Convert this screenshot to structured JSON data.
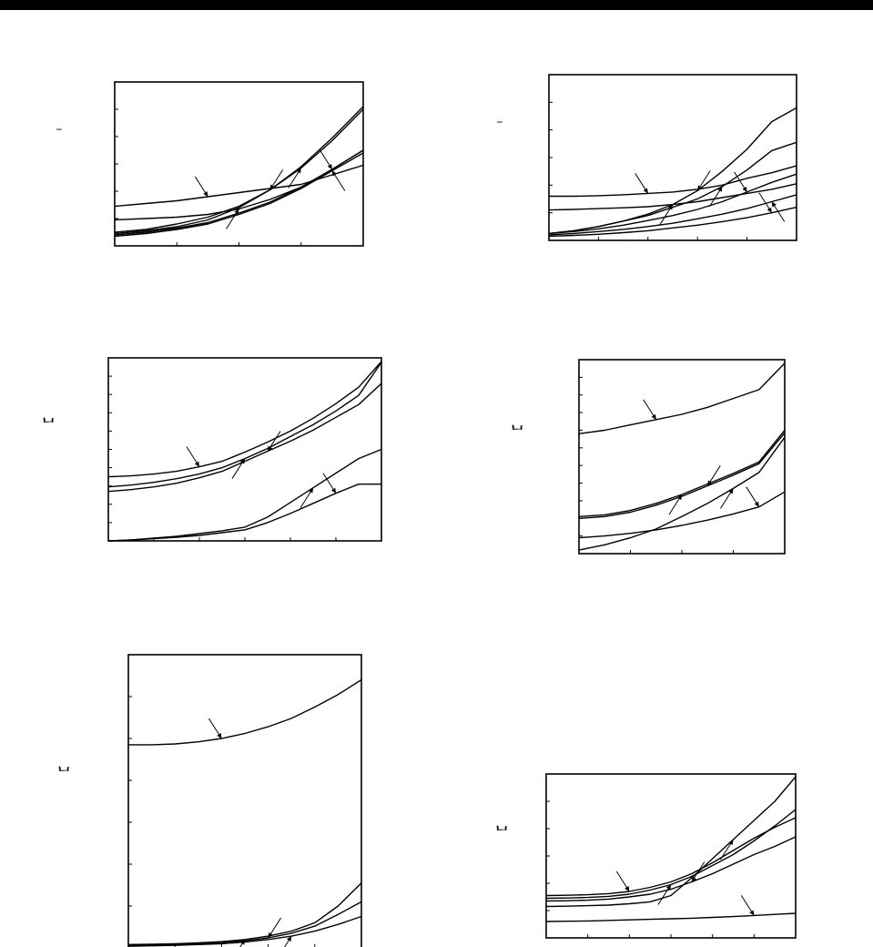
{
  "page": {
    "header_bar_color": "#000000",
    "line_color": "#000000",
    "background": "#ffffff"
  },
  "panels": [
    {
      "id": "top-left",
      "ylabel_glyph": "ı"
    },
    {
      "id": "top-right",
      "ylabel_glyph": "ı"
    },
    {
      "id": "mid-left",
      "ylabel_glyph": "ℷ"
    },
    {
      "id": "mid-right",
      "ylabel_glyph": "ℷ"
    },
    {
      "id": "bottom-left",
      "ylabel_glyph": "ℷ"
    },
    {
      "id": "bottom-right",
      "ylabel_glyph": "ℷ"
    }
  ],
  "chart_data": [
    {
      "type": "line",
      "title": "",
      "xlabel": "",
      "ylabel": "",
      "xlim": [
        0,
        4
      ],
      "ylim": [
        0,
        6
      ],
      "grid": false,
      "x_ticks": 4,
      "y_ticks": 6,
      "series": [
        {
          "x": [
            0,
            0.5,
            1,
            1.5,
            2,
            2.5,
            3,
            3.5,
            4
          ],
          "y": [
            1.45,
            1.55,
            1.65,
            1.8,
            1.95,
            2.1,
            2.25,
            2.6,
            2.95
          ]
        },
        {
          "x": [
            0,
            0.5,
            1,
            1.5,
            2,
            2.5,
            3,
            3.5,
            4
          ],
          "y": [
            0.95,
            1.0,
            1.05,
            1.15,
            1.35,
            1.7,
            2.15,
            2.8,
            3.5
          ]
        },
        {
          "x": [
            0,
            0.5,
            1,
            1.5,
            2,
            2.5,
            3,
            3.5,
            4
          ],
          "y": [
            0.45,
            0.55,
            0.7,
            0.95,
            1.4,
            2.05,
            2.9,
            3.95,
            5.1
          ]
        },
        {
          "x": [
            0,
            0.5,
            1,
            1.5,
            2,
            2.5,
            3,
            3.5,
            4
          ],
          "y": [
            0.5,
            0.6,
            0.8,
            1.05,
            1.45,
            2.05,
            2.85,
            3.85,
            5.0
          ]
        },
        {
          "x": [
            0,
            0.5,
            1,
            1.5,
            2,
            2.5,
            3,
            3.5,
            4
          ],
          "y": [
            0.4,
            0.5,
            0.65,
            0.85,
            1.2,
            1.6,
            2.15,
            2.8,
            3.5
          ]
        },
        {
          "x": [
            0,
            0.5,
            1,
            1.5,
            2,
            2.5,
            3,
            3.5,
            4
          ],
          "y": [
            0.35,
            0.45,
            0.6,
            0.8,
            1.15,
            1.55,
            2.1,
            2.75,
            3.4
          ]
        }
      ]
    },
    {
      "type": "line",
      "title": "",
      "xlabel": "",
      "ylabel": "",
      "xlim": [
        0,
        5
      ],
      "ylim": [
        0,
        6
      ],
      "grid": false,
      "x_ticks": 5,
      "y_ticks": 6,
      "series": [
        {
          "x": [
            0,
            0.5,
            1,
            1.5,
            2,
            2.5,
            3,
            3.5,
            4,
            4.5,
            5
          ],
          "y": [
            1.6,
            1.6,
            1.62,
            1.65,
            1.7,
            1.75,
            1.85,
            2.0,
            2.25,
            2.45,
            2.7
          ]
        },
        {
          "x": [
            0,
            0.5,
            1,
            1.5,
            2,
            2.5,
            3,
            3.5,
            4,
            4.5,
            5
          ],
          "y": [
            1.1,
            1.12,
            1.15,
            1.18,
            1.22,
            1.3,
            1.4,
            1.55,
            1.7,
            1.85,
            2.05
          ]
        },
        {
          "x": [
            0,
            0.5,
            1,
            1.5,
            2,
            2.5,
            3,
            3.5,
            4,
            4.5,
            5
          ],
          "y": [
            0.25,
            0.35,
            0.5,
            0.7,
            0.95,
            1.3,
            1.8,
            2.5,
            3.3,
            4.3,
            4.8
          ]
        },
        {
          "x": [
            0,
            0.5,
            1,
            1.5,
            2,
            2.5,
            3,
            3.5,
            4,
            4.5,
            5
          ],
          "y": [
            0.25,
            0.35,
            0.5,
            0.7,
            0.9,
            1.2,
            1.5,
            1.95,
            2.55,
            3.25,
            3.55
          ]
        },
        {
          "x": [
            0,
            0.5,
            1,
            1.5,
            2,
            2.5,
            3,
            3.5,
            4,
            4.5,
            5
          ],
          "y": [
            0.25,
            0.32,
            0.42,
            0.55,
            0.72,
            0.9,
            1.12,
            1.4,
            1.75,
            2.1,
            2.4
          ]
        },
        {
          "x": [
            0,
            0.5,
            1,
            1.5,
            2,
            2.5,
            3,
            3.5,
            4,
            4.5,
            5
          ],
          "y": [
            0.2,
            0.25,
            0.32,
            0.4,
            0.5,
            0.62,
            0.78,
            0.95,
            1.15,
            1.4,
            1.65
          ]
        },
        {
          "x": [
            0,
            0.5,
            1,
            1.5,
            2,
            2.5,
            3,
            3.5,
            4,
            4.5,
            5
          ],
          "y": [
            0.15,
            0.18,
            0.22,
            0.28,
            0.35,
            0.45,
            0.55,
            0.68,
            0.82,
            1.0,
            1.2
          ]
        }
      ]
    },
    {
      "type": "line",
      "title": "",
      "xlabel": "",
      "ylabel": "",
      "xlim": [
        0,
        6
      ],
      "ylim": [
        0,
        10
      ],
      "grid": false,
      "x_ticks": 6,
      "y_ticks": 10,
      "series": [
        {
          "x": [
            0,
            0.5,
            1,
            1.5,
            2,
            2.5,
            3,
            3.5,
            4,
            4.5,
            5,
            5.5,
            6
          ],
          "y": [
            3.5,
            3.55,
            3.65,
            3.8,
            4.05,
            4.35,
            4.85,
            5.4,
            6.0,
            6.7,
            7.5,
            8.4,
            9.8
          ]
        },
        {
          "x": [
            0,
            0.5,
            1,
            1.5,
            2,
            2.5,
            3,
            3.5,
            4,
            4.5,
            5,
            5.5,
            6
          ],
          "y": [
            2.95,
            3.05,
            3.2,
            3.4,
            3.65,
            4.0,
            4.5,
            5.05,
            5.7,
            6.35,
            7.1,
            7.95,
            9.75
          ]
        },
        {
          "x": [
            0,
            0.5,
            1,
            1.5,
            2,
            2.5,
            3,
            3.5,
            4,
            4.5,
            5,
            5.5,
            6
          ],
          "y": [
            2.7,
            2.8,
            2.95,
            3.15,
            3.45,
            3.8,
            4.35,
            4.9,
            5.45,
            6.05,
            6.75,
            7.45,
            8.6
          ]
        },
        {
          "x": [
            0,
            0.5,
            1,
            1.5,
            2,
            2.5,
            3,
            3.5,
            4,
            4.5,
            5,
            5.5,
            6
          ],
          "y": [
            0.0,
            0.05,
            0.15,
            0.25,
            0.4,
            0.55,
            0.75,
            1.3,
            2.1,
            2.9,
            3.7,
            4.5,
            5.0
          ]
        },
        {
          "x": [
            0,
            0.5,
            1,
            1.5,
            2,
            2.5,
            3,
            3.5,
            4,
            4.5,
            5,
            5.5,
            6
          ],
          "y": [
            0.0,
            0.05,
            0.12,
            0.2,
            0.3,
            0.45,
            0.6,
            1.0,
            1.5,
            2.05,
            2.6,
            3.1,
            3.1
          ]
        }
      ]
    },
    {
      "type": "line",
      "title": "",
      "xlabel": "",
      "ylabel": "",
      "xlim": [
        0,
        4
      ],
      "ylim": [
        0,
        11
      ],
      "grid": false,
      "x_ticks": 4,
      "y_ticks": 11,
      "series": [
        {
          "x": [
            0,
            0.5,
            1,
            1.5,
            2,
            2.5,
            3,
            3.5,
            4
          ],
          "y": [
            6.8,
            7.0,
            7.3,
            7.6,
            7.9,
            8.3,
            8.8,
            9.3,
            10.8
          ]
        },
        {
          "x": [
            0,
            0.5,
            1,
            1.5,
            2,
            2.5,
            3,
            3.5,
            4
          ],
          "y": [
            2.1,
            2.2,
            2.45,
            2.85,
            3.35,
            3.95,
            4.55,
            5.2,
            7.0
          ]
        },
        {
          "x": [
            0,
            0.5,
            1,
            1.5,
            2,
            2.5,
            3,
            3.5,
            4
          ],
          "y": [
            2.0,
            2.1,
            2.35,
            2.75,
            3.25,
            3.85,
            4.45,
            5.1,
            6.85
          ]
        },
        {
          "x": [
            0,
            0.5,
            1,
            1.5,
            2,
            2.5,
            3,
            3.5,
            4
          ],
          "y": [
            0.2,
            0.5,
            0.9,
            1.4,
            2.1,
            2.85,
            3.7,
            4.6,
            6.6
          ]
        },
        {
          "x": [
            0,
            0.5,
            1,
            1.5,
            2,
            2.5,
            3,
            3.5,
            4
          ],
          "y": [
            0.9,
            1.0,
            1.15,
            1.35,
            1.6,
            1.9,
            2.25,
            2.65,
            3.5
          ]
        }
      ]
    },
    {
      "type": "line",
      "title": "",
      "xlabel": "",
      "ylabel": "",
      "xlim": [
        0,
        5
      ],
      "ylim": [
        0,
        7
      ],
      "grid": false,
      "x_ticks": 5,
      "y_ticks": 7,
      "series": [
        {
          "x": [
            0,
            0.5,
            1,
            1.5,
            2,
            2.5,
            3,
            3.5,
            4,
            4.5,
            5
          ],
          "y": [
            4.85,
            4.85,
            4.87,
            4.92,
            5.0,
            5.12,
            5.28,
            5.48,
            5.75,
            6.05,
            6.4
          ]
        },
        {
          "x": [
            0,
            0.5,
            1,
            1.5,
            2,
            2.5,
            3,
            3.5,
            4,
            4.5,
            5
          ],
          "y": [
            0.08,
            0.09,
            0.1,
            0.12,
            0.15,
            0.2,
            0.28,
            0.4,
            0.6,
            1.0,
            1.55
          ]
        },
        {
          "x": [
            0,
            0.5,
            1,
            1.5,
            2,
            2.5,
            3,
            3.5,
            4,
            4.5,
            5
          ],
          "y": [
            0.06,
            0.07,
            0.08,
            0.1,
            0.13,
            0.17,
            0.24,
            0.35,
            0.52,
            0.8,
            1.1
          ]
        },
        {
          "x": [
            0,
            0.5,
            1,
            1.5,
            2,
            2.5,
            3,
            3.5,
            4,
            4.5,
            5
          ],
          "y": [
            0.04,
            0.05,
            0.06,
            0.08,
            0.1,
            0.14,
            0.2,
            0.28,
            0.4,
            0.56,
            0.75
          ]
        }
      ]
    },
    {
      "type": "line",
      "title": "",
      "xlabel": "",
      "ylabel": "",
      "xlim": [
        0,
        6
      ],
      "ylim": [
        0,
        6
      ],
      "grid": false,
      "x_ticks": 6,
      "y_ticks": 6,
      "series": [
        {
          "x": [
            0,
            0.5,
            1,
            1.5,
            2,
            2.5,
            3,
            3.5,
            4,
            4.5,
            5,
            5.5,
            6
          ],
          "y": [
            1.55,
            1.56,
            1.58,
            1.62,
            1.7,
            1.85,
            2.05,
            2.35,
            2.75,
            3.2,
            3.65,
            4.05,
            4.4
          ]
        },
        {
          "x": [
            0,
            0.5,
            1,
            1.5,
            2,
            2.5,
            3,
            3.5,
            4,
            4.5,
            5,
            5.5,
            6
          ],
          "y": [
            1.45,
            1.46,
            1.48,
            1.52,
            1.6,
            1.75,
            1.95,
            2.25,
            2.65,
            3.05,
            3.55,
            4.1,
            4.7
          ]
        },
        {
          "x": [
            0,
            0.5,
            1,
            1.5,
            2,
            2.5,
            3,
            3.5,
            4,
            4.5,
            5,
            5.5,
            6
          ],
          "y": [
            1.35,
            1.36,
            1.38,
            1.42,
            1.5,
            1.6,
            1.78,
            2.05,
            2.35,
            2.7,
            3.05,
            3.35,
            3.7
          ]
        },
        {
          "x": [
            0,
            0.5,
            1,
            1.5,
            2,
            2.5,
            3,
            3.5,
            4,
            4.5,
            5,
            5.5,
            6
          ],
          "y": [
            1.15,
            1.16,
            1.18,
            1.2,
            1.25,
            1.32,
            1.55,
            2.2,
            2.9,
            3.6,
            4.3,
            5.0,
            5.9
          ]
        },
        {
          "x": [
            0,
            0.5,
            1,
            1.5,
            2,
            2.5,
            3,
            3.5,
            4,
            4.5,
            5,
            5.5,
            6
          ],
          "y": [
            0.6,
            0.61,
            0.62,
            0.64,
            0.66,
            0.68,
            0.7,
            0.72,
            0.75,
            0.78,
            0.82,
            0.86,
            0.9
          ]
        }
      ]
    }
  ]
}
